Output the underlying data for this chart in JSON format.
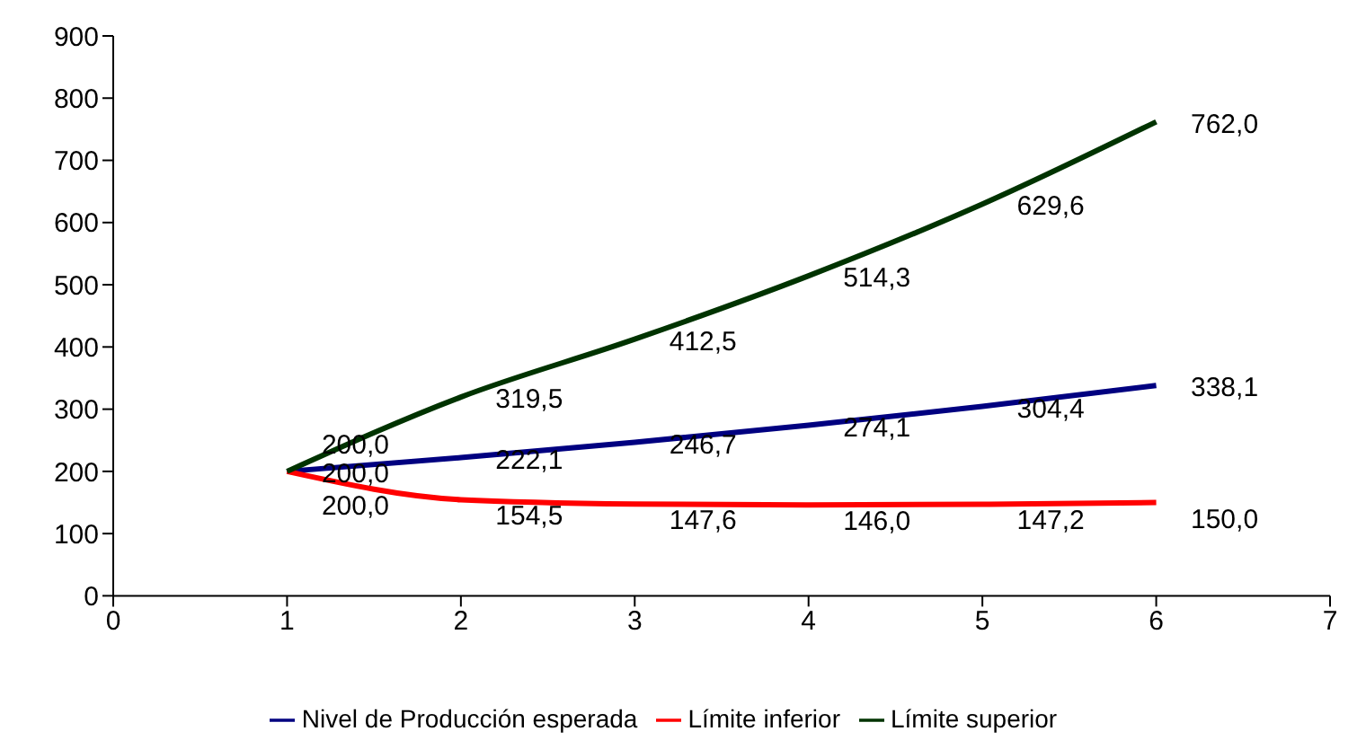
{
  "chart_data": {
    "type": "line",
    "x": [
      1,
      2,
      3,
      4,
      5,
      6
    ],
    "series": [
      {
        "name": "Nivel de Producción esperada",
        "color": "#000080",
        "values": [
          200,
          222.1,
          246.7,
          274.1,
          304.4,
          338.1
        ],
        "value_labels": [
          "200,0",
          "222,1",
          "246,7",
          "274,1",
          "304,4",
          "338,1"
        ]
      },
      {
        "name": "Límite inferior",
        "color": "#ff0000",
        "values": [
          200,
          154.5,
          147.6,
          146.0,
          147.2,
          150.0
        ],
        "value_labels": [
          "200,0",
          "154,5",
          "147,6",
          "146,0",
          "147,2",
          "150,0"
        ]
      },
      {
        "name": "Límite superior",
        "color": "#003300",
        "values": [
          200,
          319.5,
          412.5,
          514.3,
          629.6,
          762.0
        ],
        "value_labels": [
          "200,0",
          "319,5",
          "412,5",
          "514,3",
          "629,6",
          "762,0"
        ]
      }
    ],
    "xlim": [
      0,
      7
    ],
    "xticks": [
      0,
      1,
      2,
      3,
      4,
      5,
      6,
      7
    ],
    "ylim": [
      0,
      900
    ],
    "yticks": [
      0,
      100,
      200,
      300,
      400,
      500,
      600,
      700,
      800,
      900
    ],
    "grid": false,
    "legend": "bottom",
    "marker": "none",
    "line_style": "solid"
  }
}
